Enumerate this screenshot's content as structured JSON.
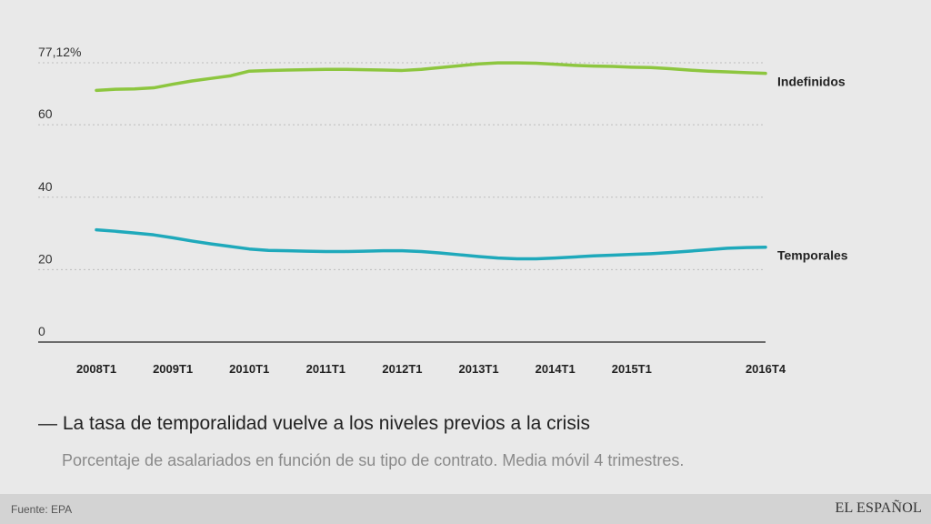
{
  "chart_data": {
    "type": "line",
    "title": "La tasa de temporalidad vuelve a los niveles previos a la crisis",
    "title_prefix": "—",
    "subtitle": "Porcentaje de asalariados en función de su tipo de contrato. Media móvil 4 trimestres.",
    "ylim": [
      0,
      77.12
    ],
    "y_ticks": [
      "0",
      "20",
      "40",
      "60",
      "77,12%"
    ],
    "y_tick_values": [
      0,
      20,
      40,
      60,
      77.12
    ],
    "x_ticks": [
      "2008T1",
      "2009T1",
      "2010T1",
      "2011T1",
      "2012T1",
      "2013T1",
      "2014T1",
      "2015T1",
      "2016T4"
    ],
    "x_tick_index": [
      0,
      4,
      8,
      12,
      16,
      20,
      24,
      28,
      35
    ],
    "grid": true,
    "series": [
      {
        "name": "Indefinidos",
        "color": "#8dc63f",
        "values": [
          69.5,
          69.8,
          69.9,
          70.2,
          71.2,
          72.1,
          72.8,
          73.5,
          74.8,
          75.0,
          75.1,
          75.2,
          75.3,
          75.3,
          75.2,
          75.1,
          75.0,
          75.3,
          75.8,
          76.3,
          76.8,
          77.1,
          77.1,
          77.0,
          76.7,
          76.4,
          76.2,
          76.1,
          75.9,
          75.8,
          75.5,
          75.1,
          74.8,
          74.6,
          74.4,
          74.2
        ]
      },
      {
        "name": "Temporales",
        "color": "#1fa9bb",
        "values": [
          31.0,
          30.6,
          30.1,
          29.6,
          28.8,
          27.9,
          27.1,
          26.4,
          25.7,
          25.3,
          25.2,
          25.1,
          25.0,
          25.0,
          25.1,
          25.2,
          25.2,
          25.0,
          24.6,
          24.1,
          23.6,
          23.2,
          23.0,
          23.0,
          23.2,
          23.5,
          23.8,
          24.0,
          24.2,
          24.4,
          24.7,
          25.1,
          25.5,
          25.9,
          26.1,
          26.2
        ]
      }
    ]
  },
  "footer": {
    "source": "Fuente: EPA",
    "brand": "EL ESPAÑOL"
  }
}
